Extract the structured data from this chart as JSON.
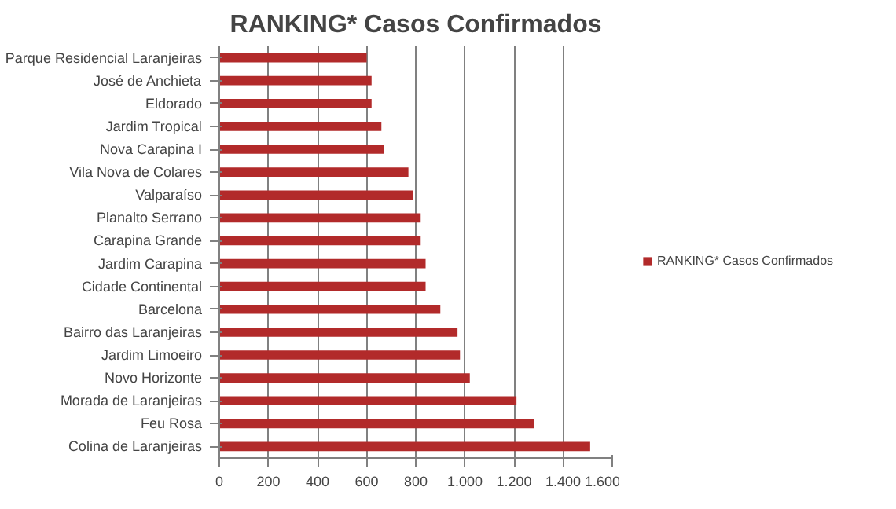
{
  "chart_data": {
    "type": "bar",
    "orientation": "horizontal",
    "title": "RANKING* Casos Confirmados",
    "categories": [
      "Parque Residencial Laranjeiras",
      "José de Anchieta",
      "Eldorado",
      "Jardim Tropical",
      "Nova Carapina I",
      "Vila Nova de Colares",
      "Valparaíso",
      "Planalto Serrano",
      "Carapina Grande",
      "Jardim Carapina",
      "Cidade Continental",
      "Barcelona",
      "Bairro das Laranjeiras",
      "Jardim Limoeiro",
      "Novo Horizonte",
      "Morada de Laranjeiras",
      "Feu Rosa",
      "Colina de Laranjeiras"
    ],
    "series": [
      {
        "name": "RANKING* Casos Confirmados",
        "color": "#b22a2a",
        "values": [
          600,
          620,
          620,
          660,
          670,
          770,
          790,
          820,
          820,
          840,
          840,
          900,
          970,
          980,
          1020,
          1210,
          1280,
          1510
        ]
      }
    ],
    "xlim": [
      0,
      1600
    ],
    "xticks": [
      0,
      200,
      400,
      600,
      800,
      {
        "value": 1000,
        "label": "1.000"
      },
      {
        "value": 1200,
        "label": "1.200"
      },
      {
        "value": 1400,
        "label": "1.400"
      },
      {
        "value": 1600,
        "label": "1.600"
      }
    ],
    "grid": "x",
    "legend": "right"
  }
}
